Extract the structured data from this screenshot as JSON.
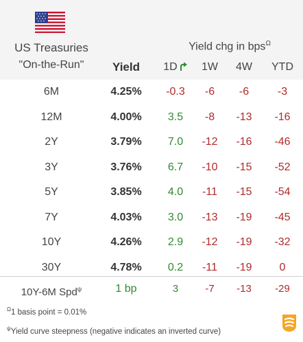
{
  "header": {
    "title": "US Treasuries",
    "subtitle": "\"On-the-Run\"",
    "yield_label": "Yield",
    "chg_label": "Yield chg in bps",
    "chg_sup": "Ω",
    "columns": [
      "1D",
      "1W",
      "4W",
      "YTD"
    ]
  },
  "rows": [
    {
      "tenor": "6M",
      "yield": "4.25%",
      "d1": "-0.3",
      "w1": "-6",
      "w4": "-6",
      "ytd": "-3"
    },
    {
      "tenor": "12M",
      "yield": "4.00%",
      "d1": "3.5",
      "w1": "-8",
      "w4": "-13",
      "ytd": "-16"
    },
    {
      "tenor": "2Y",
      "yield": "3.79%",
      "d1": "7.0",
      "w1": "-12",
      "w4": "-16",
      "ytd": "-46"
    },
    {
      "tenor": "3Y",
      "yield": "3.76%",
      "d1": "6.7",
      "w1": "-10",
      "w4": "-15",
      "ytd": "-52"
    },
    {
      "tenor": "5Y",
      "yield": "3.85%",
      "d1": "4.0",
      "w1": "-11",
      "w4": "-15",
      "ytd": "-54"
    },
    {
      "tenor": "7Y",
      "yield": "4.03%",
      "d1": "3.0",
      "w1": "-13",
      "w4": "-19",
      "ytd": "-45"
    },
    {
      "tenor": "10Y",
      "yield": "4.26%",
      "d1": "2.9",
      "w1": "-12",
      "w4": "-19",
      "ytd": "-32"
    },
    {
      "tenor": "30Y",
      "yield": "4.78%",
      "d1": "0.2",
      "w1": "-11",
      "w4": "-19",
      "ytd": "0"
    }
  ],
  "spread": {
    "label": "10Y-6M Spd",
    "label_sup": "ψ",
    "value": "1 bp",
    "d1": "3",
    "w1": "-7",
    "w4": "-13",
    "ytd": "-29"
  },
  "footnotes": {
    "note1_sup": "Ω",
    "note1": "1 basis point = 0.01%",
    "note2_sup": "ψ",
    "note2": "Yield curve steepness (negative indicates an inverted curve)"
  },
  "colors": {
    "negative": "#b02a2a",
    "positive": "#2e8b2e",
    "header_bg": "#f4f4f4",
    "logo": "#f5a623"
  },
  "icons": {
    "flag": "us-flag-icon",
    "trend": "turn-arrow-icon",
    "logo": "brand-logo-icon"
  }
}
